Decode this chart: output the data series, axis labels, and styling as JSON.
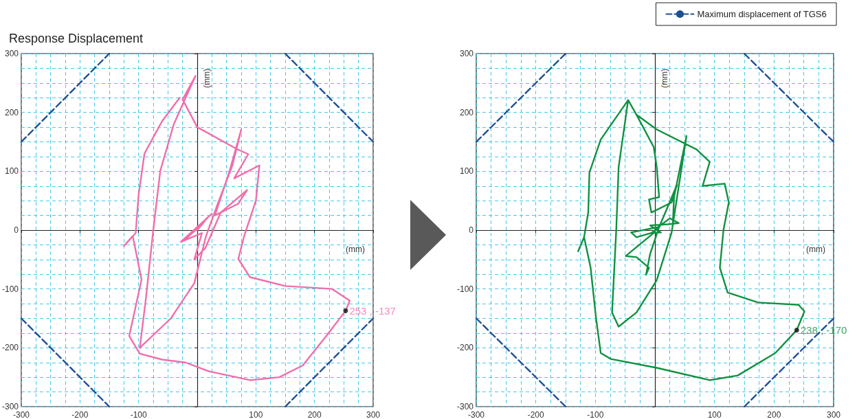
{
  "chart_data": [
    {
      "type": "line",
      "title": "Response Displacement",
      "xlabel": "(mm)",
      "ylabel": "(mm)",
      "xlim": [
        -300,
        300
      ],
      "ylim": [
        -300,
        300
      ],
      "xticks": [
        -300,
        -200,
        -100,
        {
          "value": 0,
          "label": null
        },
        100,
        200,
        300
      ],
      "yticks": [
        -300,
        -200,
        -100,
        0,
        100,
        200,
        300
      ],
      "grid": true,
      "legend": false,
      "marker": "none",
      "series": [
        {
          "color": "#f06eaa",
          "line_style": "solid",
          "x": [
            0,
            12,
            -14,
            18,
            -22,
            25,
            -28,
            8,
            -5,
            14,
            40,
            85,
            70,
            30,
            55,
            75,
            60,
            35,
            15,
            -5,
            -45,
            -98,
            -88,
            -75,
            -63,
            -40,
            -3,
            -25,
            0,
            67,
            87,
            63,
            106,
            100,
            80,
            70,
            90,
            150,
            230,
            260,
            253,
            220,
            180,
            140,
            90,
            20,
            -20,
            -60,
            -98,
            -116,
            -95,
            -110,
            -125,
            -105,
            -100,
            -90,
            -60,
            -30
          ],
          "values": [
            0,
            14,
            -10,
            22,
            -18,
            28,
            -20,
            -5,
            -50,
            -30,
            30,
            68,
            45,
            25,
            100,
            171,
            110,
            45,
            -10,
            -90,
            -150,
            -200,
            -120,
            0,
            101,
            180,
            262,
            222,
            175,
            138,
            129,
            88,
            110,
            50,
            -10,
            -49,
            -80,
            -95,
            -100,
            -120,
            -137,
            -180,
            -230,
            -250,
            -255,
            -240,
            -225,
            -220,
            -210,
            -180,
            -84,
            -10,
            -27,
            -5,
            60,
            130,
            185,
            225
          ]
        },
        {
          "color": "#1f4e96",
          "line_style": "dashed",
          "x": [
            -300,
            -150
          ],
          "values": [
            150,
            300
          ]
        },
        {
          "color": "#1f4e96",
          "line_style": "dashed",
          "x": [
            150,
            300
          ],
          "values": [
            300,
            150
          ]
        },
        {
          "color": "#1f4e96",
          "line_style": "dashed",
          "x": [
            -300,
            -150
          ],
          "values": [
            -150,
            -300
          ]
        },
        {
          "color": "#1f4e96",
          "line_style": "dashed",
          "x": [
            150,
            300
          ],
          "values": [
            -300,
            -150
          ]
        }
      ],
      "annotations": [
        {
          "text": "253 , -137",
          "x": 253,
          "y": -137
        }
      ]
    },
    {
      "type": "line",
      "xlabel": "(mm)",
      "ylabel": "(mm)",
      "xlim": [
        -300,
        300
      ],
      "ylim": [
        -300,
        300
      ],
      "xticks": [
        -300,
        -200,
        -100,
        {
          "value": 0,
          "label": null
        },
        100,
        200,
        300
      ],
      "yticks": [
        -300,
        -200,
        -100,
        0,
        100,
        200,
        300
      ],
      "grid": true,
      "legend": "top right",
      "marker": "none",
      "series": [
        {
          "color": "#119142",
          "line_style": "solid",
          "x": [
            0,
            8,
            -6,
            10,
            -8,
            22,
            40,
            25,
            5,
            -40,
            -31,
            0,
            -49,
            -31,
            -10,
            -15,
            -8,
            7,
            37,
            28,
            -6,
            -10,
            7,
            3,
            -2,
            -31,
            -45,
            -91,
            -110,
            -112,
            -119,
            -129,
            -119,
            -108,
            -99,
            -91,
            -74,
            3,
            92,
            139,
            202,
            238,
            251,
            241,
            173,
            122,
            109,
            115,
            124,
            117,
            80,
            92,
            70,
            3,
            -31,
            -45,
            -61,
            -65,
            -72,
            -61,
            -31,
            3,
            28,
            53,
            32,
            30
          ],
          "values": [
            0,
            6,
            -5,
            -4,
            8,
            10,
            12,
            20,
            5,
            -4,
            -12,
            -3,
            -44,
            -46,
            -64,
            -76,
            -40,
            5,
            77,
            47,
            30,
            52,
            56,
            107,
            141,
            196,
            221,
            154,
            98,
            30,
            -12,
            -36,
            -12,
            -64,
            -149,
            -209,
            -219,
            -234,
            -255,
            -247,
            -209,
            -170,
            -138,
            -127,
            -123,
            -106,
            -64,
            0,
            47,
            79,
            75,
            116,
            137,
            171,
            196,
            221,
            107,
            0,
            -140,
            -164,
            -140,
            -85,
            -4,
            160,
            56,
            10
          ]
        },
        {
          "name": "Maximum displacement of TGS6",
          "color": "#1f4e96",
          "line_style": "dashed",
          "x": [
            -300,
            -150
          ],
          "values": [
            150,
            300
          ]
        },
        {
          "color": "#1f4e96",
          "line_style": "dashed",
          "x": [
            150,
            300
          ],
          "values": [
            300,
            150
          ]
        },
        {
          "color": "#1f4e96",
          "line_style": "dashed",
          "x": [
            -300,
            -150
          ],
          "values": [
            -150,
            -300
          ]
        },
        {
          "color": "#1f4e96",
          "line_style": "dashed",
          "x": [
            150,
            300
          ],
          "values": [
            -300,
            -150
          ]
        }
      ],
      "annotations": [
        {
          "text": "238 , -170",
          "x": 238,
          "y": -170
        }
      ]
    }
  ]
}
